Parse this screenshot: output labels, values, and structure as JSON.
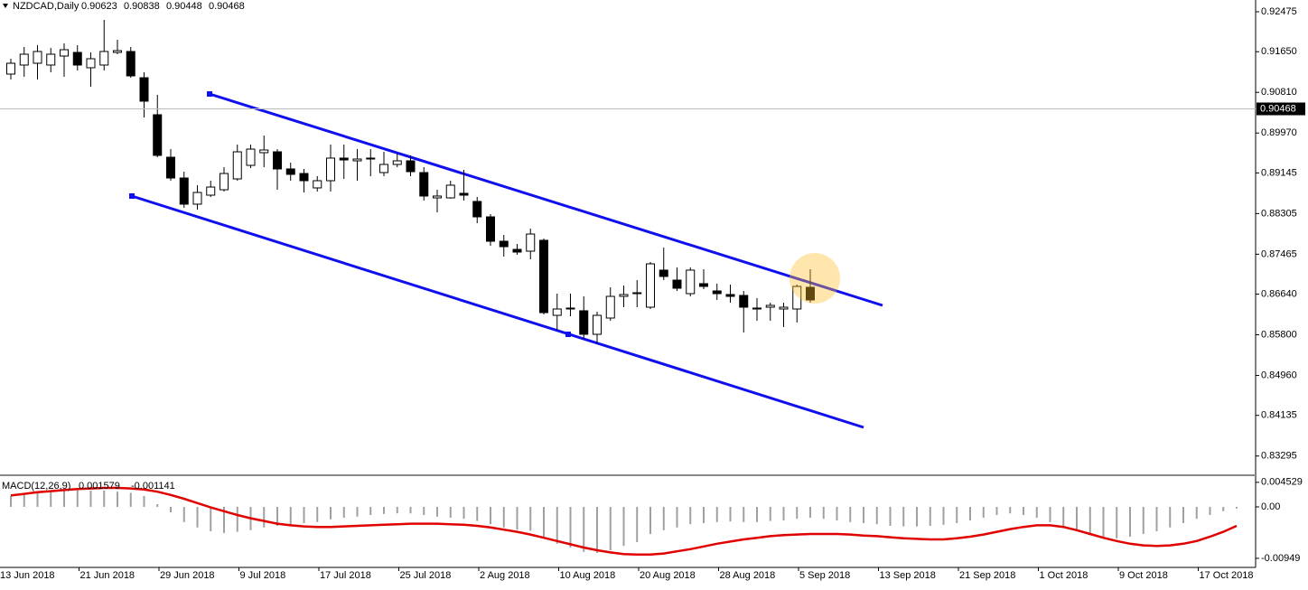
{
  "chart_data": [
    {
      "type": "candlestick",
      "title": "NZDCAD,Daily",
      "quote": {
        "open": 0.90623,
        "high": 0.90838,
        "low": 0.90448,
        "close": 0.90468
      },
      "x_labels": [
        "13 Jun 2018",
        "21 Jun 2018",
        "29 Jun 2018",
        "9 Jul 2018",
        "17 Jul 2018",
        "25 Jul 2018",
        "2 Aug 2018",
        "10 Aug 2018",
        "20 Aug 2018",
        "28 Aug 2018",
        "5 Sep 2018",
        "13 Sep 2018",
        "21 Sep 2018",
        "1 Oct 2018",
        "9 Oct 2018",
        "17 Oct 2018"
      ],
      "open": [
        0.91187,
        0.91374,
        0.91411,
        0.91374,
        0.9156,
        0.91635,
        0.91318,
        0.91374,
        0.91635,
        0.91654,
        0.91112,
        0.90347,
        0.89469,
        0.8904,
        0.88499,
        0.88685,
        0.88797,
        0.89021,
        0.89301,
        0.89563,
        0.89581,
        0.89227,
        0.89133,
        0.88835,
        0.88984,
        0.89451,
        0.89395,
        0.89432,
        0.89152,
        0.8932,
        0.89395,
        0.89152,
        0.88629,
        0.88629,
        0.88723,
        0.88555,
        0.88237,
        0.87733,
        0.87565,
        0.87528,
        0.87752,
        0.86202,
        0.86333,
        0.86296,
        0.8581,
        0.86146,
        0.86594,
        0.8665,
        0.8637,
        0.87136,
        0.8693,
        0.8665,
        0.86856,
        0.86706,
        0.86632,
        0.86613,
        0.86333,
        0.8637,
        0.86333,
        0.86333,
        0.86781
      ],
      "high": [
        0.91504,
        0.91747,
        0.91784,
        0.91728,
        0.91822,
        0.91784,
        0.91635,
        0.92307,
        0.91897,
        0.91747,
        0.91224,
        0.90758,
        0.89637,
        0.89171,
        0.88891,
        0.88984,
        0.89264,
        0.89731,
        0.89731,
        0.89917,
        0.89637,
        0.89357,
        0.89227,
        0.89077,
        0.89731,
        0.89731,
        0.89637,
        0.89637,
        0.89581,
        0.89544,
        0.89507,
        0.89264,
        0.88797,
        0.88984,
        0.89208,
        0.88648,
        0.88293,
        0.87864,
        0.87677,
        0.87994,
        0.87789,
        0.8665,
        0.8665,
        0.86594,
        0.86277,
        0.86781,
        0.86818,
        0.8693,
        0.87304,
        0.87602,
        0.87192,
        0.87192,
        0.87154,
        0.86856,
        0.86837,
        0.86706,
        0.86557,
        0.86464,
        0.86464,
        0.86837,
        0.87154
      ],
      "low": [
        0.91075,
        0.91131,
        0.91075,
        0.91224,
        0.91131,
        0.91262,
        0.90926,
        0.91262,
        0.91598,
        0.91112,
        0.90291,
        0.89469,
        0.88984,
        0.88424,
        0.88387,
        0.88648,
        0.8876,
        0.88984,
        0.89245,
        0.89264,
        0.88797,
        0.88984,
        0.88741,
        0.8876,
        0.8876,
        0.89021,
        0.88984,
        0.89077,
        0.89077,
        0.89264,
        0.89077,
        0.88573,
        0.88331,
        0.88611,
        0.88573,
        0.88107,
        0.8764,
        0.87416,
        0.87453,
        0.8736,
        0.86221,
        0.85903,
        0.86183,
        0.85717,
        0.85623,
        0.8609,
        0.8637,
        0.8637,
        0.86333,
        0.8693,
        0.86706,
        0.86594,
        0.86744,
        0.8652,
        0.86464,
        0.85847,
        0.8609,
        0.8609,
        0.85959,
        0.86053,
        0.86464
      ],
      "close": [
        0.91411,
        0.91598,
        0.91654,
        0.91598,
        0.91691,
        0.91374,
        0.91504,
        0.91654,
        0.91672,
        0.9115,
        0.90627,
        0.89507,
        0.8904,
        0.88499,
        0.88741,
        0.88853,
        0.89133,
        0.89581,
        0.89637,
        0.89619,
        0.89227,
        0.89115,
        0.88984,
        0.88984,
        0.89451,
        0.89413,
        0.89432,
        0.89451,
        0.8932,
        0.89395,
        0.89171,
        0.88667,
        0.88667,
        0.88891,
        0.88685,
        0.88237,
        0.87733,
        0.87621,
        0.87509,
        0.87882,
        0.86258,
        0.86333,
        0.86352,
        0.8581,
        0.86202,
        0.86594,
        0.86632,
        0.86669,
        0.87266,
        0.87005,
        0.86762,
        0.87136,
        0.868,
        0.8665,
        0.86594,
        0.8637,
        0.86352,
        0.86408,
        0.8637,
        0.868,
        0.8652
      ],
      "ylim": [
        0.82916,
        0.92718
      ],
      "yticks": [
        0.92475,
        {
          "value": 0.9165,
          "label": "0.91650"
        },
        {
          "value": 0.9081,
          "label": "0.90810"
        },
        {
          "value": 0.8997,
          "label": "0.89970"
        },
        0.89145,
        0.88305,
        0.87465,
        {
          "value": 0.8664,
          "label": "0.86640"
        },
        {
          "value": 0.858,
          "label": "0.85800"
        },
        {
          "value": 0.8496,
          "label": "0.84960"
        },
        0.84135,
        0.83295
      ],
      "up_color": "#ffffff",
      "down_color": "#000000"
    },
    {
      "type": "macd",
      "title": "MACD(12,26,9)",
      "main": 0.001579,
      "signal_value": -0.001141,
      "histogram": [
        0.002,
        0.0025,
        0.0028,
        0.003,
        0.003,
        0.0031,
        0.003,
        0.003,
        0.0028,
        0.0026,
        0.002,
        0.0005,
        -0.001,
        -0.0028,
        -0.0038,
        -0.0045,
        -0.0048,
        -0.0046,
        -0.0043,
        -0.0038,
        -0.0035,
        -0.0033,
        -0.003,
        -0.0028,
        -0.0023,
        -0.002,
        -0.0018,
        -0.0015,
        -0.0013,
        -0.0012,
        -0.0012,
        -0.0015,
        -0.0018,
        -0.002,
        -0.0022,
        -0.0026,
        -0.0032,
        -0.0038,
        -0.0042,
        -0.0044,
        -0.0058,
        -0.0068,
        -0.0075,
        -0.0083,
        -0.0085,
        -0.008,
        -0.0072,
        -0.0065,
        -0.005,
        -0.0043,
        -0.0038,
        -0.0032,
        -0.003,
        -0.0028,
        -0.0027,
        -0.0028,
        -0.0028,
        -0.0026,
        -0.0025,
        -0.0022,
        -0.002,
        -0.0022,
        -0.0025,
        -0.0028,
        -0.003,
        -0.0032,
        -0.0035,
        -0.0036,
        -0.0036,
        -0.0035,
        -0.0033,
        -0.003,
        -0.0025,
        -0.002,
        -0.0015,
        -0.0012,
        -0.0015,
        -0.002,
        -0.0028,
        -0.0038,
        -0.0045,
        -0.0052,
        -0.0055,
        -0.0058,
        -0.0055,
        -0.005,
        -0.0045,
        -0.0038,
        -0.003,
        -0.0022,
        -0.0015,
        -0.0008,
        -0.0003
      ],
      "signal": [
        0.0021,
        0.0024,
        0.0027,
        0.0029,
        0.0031,
        0.0033,
        0.0034,
        0.0035,
        0.0035,
        0.0034,
        0.0032,
        0.0028,
        0.0022,
        0.0015,
        0.0007,
        -0.0001,
        -0.0008,
        -0.0015,
        -0.0021,
        -0.0026,
        -0.0031,
        -0.0034,
        -0.0036,
        -0.0037,
        -0.0037,
        -0.0036,
        -0.0035,
        -0.0034,
        -0.0033,
        -0.0032,
        -0.0031,
        -0.0031,
        -0.0031,
        -0.0032,
        -0.0033,
        -0.0035,
        -0.0038,
        -0.0042,
        -0.0046,
        -0.0051,
        -0.0057,
        -0.0063,
        -0.0069,
        -0.0075,
        -0.008,
        -0.0084,
        -0.0087,
        -0.0088,
        -0.0088,
        -0.0086,
        -0.0082,
        -0.0078,
        -0.0073,
        -0.0068,
        -0.0064,
        -0.006,
        -0.0057,
        -0.0054,
        -0.0052,
        -0.0051,
        -0.005,
        -0.005,
        -0.005,
        -0.0051,
        -0.0053,
        -0.0054,
        -0.0056,
        -0.0058,
        -0.0059,
        -0.006,
        -0.006,
        -0.0058,
        -0.0055,
        -0.0051,
        -0.0046,
        -0.0041,
        -0.0037,
        -0.0034,
        -0.0034,
        -0.0037,
        -0.0043,
        -0.005,
        -0.0057,
        -0.0063,
        -0.0068,
        -0.0071,
        -0.0072,
        -0.0071,
        -0.0068,
        -0.0063,
        -0.0055,
        -0.0046,
        -0.0035
      ],
      "histogram_color": "#a0a0a0",
      "signal_color": "#e00000",
      "ylim": [
        -0.011,
        0.0055
      ],
      "yticks": [
        0.004529,
        {
          "value": 0,
          "label": "0.00"
        },
        -0.00949
      ]
    }
  ]
}
